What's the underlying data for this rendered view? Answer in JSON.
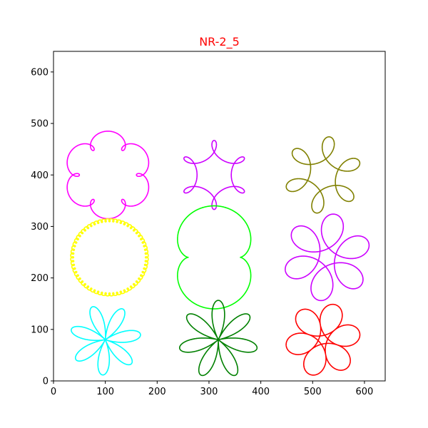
{
  "chart_data": {
    "type": "line",
    "title": "NR-2_5",
    "title_color": "#ff0000",
    "xlabel": "",
    "ylabel": "",
    "xlim": [
      0,
      640
    ],
    "ylim": [
      0,
      640
    ],
    "x_ticks": [
      0,
      100,
      200,
      300,
      400,
      500,
      600
    ],
    "y_ticks": [
      0,
      100,
      200,
      300,
      400,
      500,
      600
    ],
    "grid": false,
    "legend": "none",
    "series": [
      {
        "color": "#ff00ff",
        "center": [
          105,
          400
        ],
        "kind": "epitrochoid",
        "R": 60,
        "r": 10,
        "d": 15,
        "rot": 0
      },
      {
        "color": "#cc00ff",
        "center": [
          310,
          400
        ],
        "kind": "hypotrochoid",
        "R": 60,
        "r": 10,
        "d": 17,
        "rot": 90
      },
      {
        "color": "#808000",
        "center": [
          520,
          400
        ],
        "kind": "hypotrochoid",
        "R": 60,
        "r": 10,
        "d": 25,
        "rot": 80
      },
      {
        "color": "#ffff00",
        "center": [
          108,
          240
        ],
        "kind": "epitrochoid",
        "R": 72,
        "r": 1.2,
        "d": 3,
        "rot": 0
      },
      {
        "color": "#00ff00",
        "center": [
          310,
          240
        ],
        "kind": "epitrochoid",
        "R": 50,
        "r": 25,
        "d": 25,
        "rot": 0
      },
      {
        "color": "#cc00ff",
        "center": [
          528,
          240
        ],
        "kind": "hypotrochoid",
        "R": 60,
        "r": 10,
        "d": 35,
        "rot": 80
      },
      {
        "color": "#00ffff",
        "center": [
          100,
          80
        ],
        "kind": "rose",
        "R": 70,
        "r": 0,
        "d": 0,
        "rot": 60
      },
      {
        "color": "#008000",
        "center": [
          318,
          80
        ],
        "kind": "rose",
        "R": 78,
        "r": 0,
        "d": 0,
        "rot": 90
      },
      {
        "color": "#ff0000",
        "center": [
          520,
          80
        ],
        "kind": "hypotrochoid",
        "R": 48,
        "r": 8,
        "d": 32,
        "rot": 70
      }
    ]
  }
}
